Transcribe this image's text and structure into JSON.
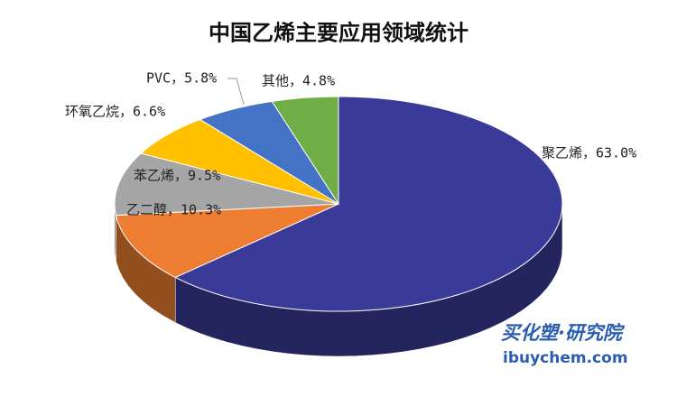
{
  "chart_data": {
    "type": "pie3d",
    "title": "中国乙烯主要应用领域统计",
    "values": [
      63.0,
      10.3,
      9.5,
      6.6,
      5.8,
      4.8
    ],
    "value_labels": [
      "聚乙烯，63.0%",
      "乙二醇，10.3%",
      "苯乙烯，9.5%",
      "环氧乙烷，6.6%",
      "PVC，5.8%",
      "其他，4.8%"
    ],
    "colors": [
      "#3a3a98",
      "#ed7d31",
      "#a5a5a5",
      "#ffc000",
      "#4472c4",
      "#70ad47"
    ],
    "watermark": [
      "买化塑·研究院",
      "ibuychem.com"
    ]
  }
}
